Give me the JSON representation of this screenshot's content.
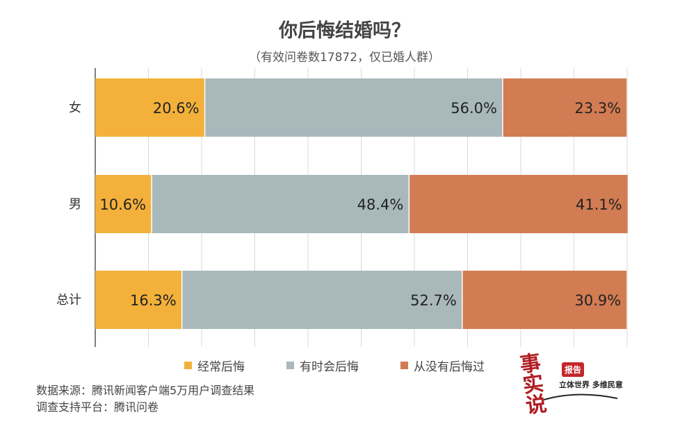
{
  "title": "你后悔结婚吗？",
  "subtitle": "（有效问卷数17872，仅已婚人群）",
  "chart_data": {
    "type": "bar",
    "orientation": "horizontal",
    "stacked": true,
    "percent_stacked": true,
    "categories": [
      "女",
      "男",
      "总计"
    ],
    "series": [
      {
        "name": "经常后悔",
        "values": [
          20.6,
          10.6,
          16.3
        ],
        "labels": [
          "20.6%",
          "10.6%",
          "16.3%"
        ],
        "color": "#F3B13B"
      },
      {
        "name": "有时会后悔",
        "values": [
          56.0,
          48.4,
          52.7
        ],
        "labels": [
          "56.0%",
          "48.4%",
          "52.7%"
        ],
        "color": "#A9B8BB"
      },
      {
        "name": "从没有后悔过",
        "values": [
          23.3,
          41.1,
          30.9
        ],
        "labels": [
          "23.3%",
          "41.1%",
          "30.9%"
        ],
        "color": "#D27C53"
      }
    ],
    "xlim": [
      0,
      100
    ],
    "grid": "vertical",
    "legend_position": "bottom"
  },
  "source": {
    "line1": "数据来源：腾讯新闻客户端5万用户调查结果",
    "line2": "调查支持平台：腾讯问卷"
  },
  "logo": {
    "mark": "事实说",
    "badge": "报告",
    "tagline": "立体世界 多维民意"
  },
  "colors": {
    "grid": "#D9D9D9",
    "axis": "#555555",
    "logo_red": "#B01E23"
  }
}
